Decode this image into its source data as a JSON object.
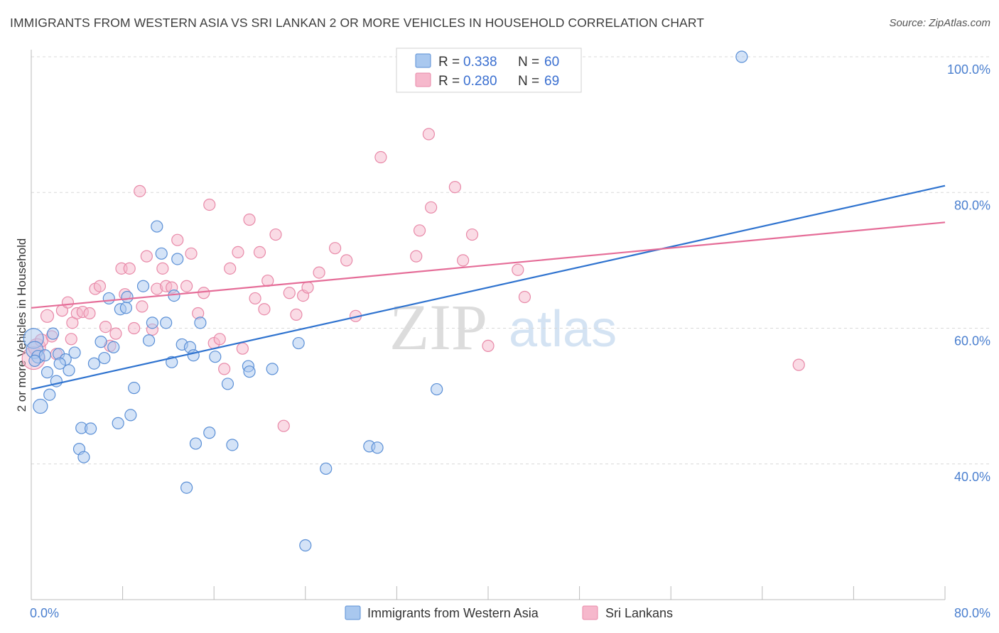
{
  "title": "IMMIGRANTS FROM WESTERN ASIA VS SRI LANKAN 2 OR MORE VEHICLES IN HOUSEHOLD CORRELATION CHART",
  "source": "Source: ZipAtlas.com",
  "watermark": {
    "part1": "ZIP",
    "part2": "atlas"
  },
  "legend": {
    "rows": [
      {
        "r_label": "R = ",
        "r_value": "0.338",
        "n_label": "N = ",
        "n_value": "60"
      },
      {
        "r_label": "R = ",
        "r_value": "0.280",
        "n_label": "N = ",
        "n_value": "69"
      }
    ]
  },
  "bottom_legend": [
    "Immigrants from Western Asia",
    "Sri Lankans"
  ],
  "colors": {
    "blue_fill": "#a9c8ef",
    "blue_stroke": "#5a8fd6",
    "blue_line": "#2f73cf",
    "pink_fill": "#f6b8cc",
    "pink_stroke": "#e889a8",
    "pink_line": "#e56d98",
    "grid": "#d8d8d8",
    "tick_text": "#4a7fcf"
  },
  "chart_data": {
    "type": "scatter",
    "xlabel": "",
    "ylabel": "2 or more Vehicles in Household",
    "xlim": [
      0,
      80
    ],
    "ylim": [
      20,
      100
    ],
    "x_tick_labels": [
      "0.0%",
      "80.0%"
    ],
    "y_ticks": [
      40,
      60,
      80,
      100
    ],
    "y_tick_labels": [
      "40.0%",
      "60.0%",
      "80.0%",
      "100.0%"
    ],
    "grid": true,
    "legend_position": "top-center",
    "series": [
      {
        "name": "Immigrants from Western Asia",
        "r": 0.338,
        "n": 60,
        "trend": {
          "x0": 0,
          "y0": 51.0,
          "x1": 80,
          "y1": 81.0
        },
        "points": [
          [
            0.2,
            58.5,
            14
          ],
          [
            0.3,
            56.8,
            12
          ],
          [
            0.6,
            55.8,
            9
          ],
          [
            0.8,
            48.5,
            10
          ],
          [
            1.2,
            56.0,
            8
          ],
          [
            1.4,
            53.5,
            8
          ],
          [
            1.6,
            50.2,
            8
          ],
          [
            1.9,
            59.2,
            8
          ],
          [
            2.2,
            52.2,
            8
          ],
          [
            2.4,
            56.2,
            8
          ],
          [
            3.0,
            55.4,
            8
          ],
          [
            3.3,
            53.8,
            8
          ],
          [
            3.8,
            56.4,
            8
          ],
          [
            4.2,
            42.2,
            8
          ],
          [
            4.4,
            45.3,
            8
          ],
          [
            4.6,
            41.0,
            8
          ],
          [
            5.2,
            45.2,
            8
          ],
          [
            5.5,
            54.8,
            8
          ],
          [
            6.1,
            58.0,
            8
          ],
          [
            6.4,
            55.6,
            8
          ],
          [
            6.8,
            64.4,
            8
          ],
          [
            7.2,
            57.2,
            8
          ],
          [
            7.6,
            46.0,
            8
          ],
          [
            7.8,
            62.8,
            8
          ],
          [
            8.3,
            63.0,
            8
          ],
          [
            8.4,
            64.6,
            8
          ],
          [
            8.7,
            47.2,
            8
          ],
          [
            9.0,
            51.2,
            8
          ],
          [
            9.8,
            66.2,
            8
          ],
          [
            10.3,
            58.2,
            8
          ],
          [
            10.6,
            60.8,
            8
          ],
          [
            11.0,
            75.0,
            8
          ],
          [
            11.4,
            71.0,
            8
          ],
          [
            11.8,
            60.8,
            8
          ],
          [
            12.3,
            55.0,
            8
          ],
          [
            12.5,
            64.8,
            8
          ],
          [
            12.8,
            70.2,
            8
          ],
          [
            13.2,
            57.6,
            8
          ],
          [
            13.6,
            36.5,
            8
          ],
          [
            13.9,
            57.2,
            8
          ],
          [
            14.2,
            56.0,
            8
          ],
          [
            14.4,
            43.0,
            8
          ],
          [
            14.8,
            60.8,
            8
          ],
          [
            15.6,
            44.6,
            8
          ],
          [
            16.1,
            55.8,
            8
          ],
          [
            17.2,
            51.8,
            8
          ],
          [
            17.6,
            42.8,
            8
          ],
          [
            19.0,
            54.4,
            8
          ],
          [
            19.1,
            53.6,
            8
          ],
          [
            21.1,
            54.0,
            8
          ],
          [
            23.4,
            57.8,
            8
          ],
          [
            24.0,
            28.0,
            8
          ],
          [
            25.8,
            39.3,
            8
          ],
          [
            29.6,
            42.6,
            8
          ],
          [
            30.3,
            42.4,
            8
          ],
          [
            35.5,
            51.0,
            8
          ],
          [
            44.0,
            100.0,
            8
          ],
          [
            62.2,
            100.0,
            8
          ],
          [
            0.3,
            55.2,
            8
          ],
          [
            2.5,
            54.8,
            8
          ]
        ]
      },
      {
        "name": "Sri Lankans",
        "r": 0.28,
        "n": 69,
        "trend": {
          "x0": 0,
          "y0": 63.0,
          "x1": 80,
          "y1": 75.6
        },
        "points": [
          [
            0.2,
            55.6,
            16
          ],
          [
            0.5,
            57.2,
            12
          ],
          [
            0.9,
            58.2,
            9
          ],
          [
            1.4,
            61.8,
            9
          ],
          [
            1.8,
            58.8,
            8
          ],
          [
            2.2,
            56.2,
            8
          ],
          [
            2.7,
            62.6,
            8
          ],
          [
            3.2,
            63.8,
            8
          ],
          [
            3.6,
            60.8,
            8
          ],
          [
            4.0,
            62.2,
            8
          ],
          [
            4.5,
            62.4,
            8
          ],
          [
            5.1,
            62.2,
            8
          ],
          [
            5.6,
            65.8,
            8
          ],
          [
            6.0,
            66.2,
            8
          ],
          [
            6.5,
            60.2,
            8
          ],
          [
            6.9,
            57.4,
            8
          ],
          [
            7.4,
            59.2,
            8
          ],
          [
            7.9,
            68.8,
            8
          ],
          [
            8.2,
            65.0,
            8
          ],
          [
            8.6,
            68.8,
            8
          ],
          [
            9.0,
            60.0,
            8
          ],
          [
            9.5,
            80.2,
            8
          ],
          [
            9.7,
            63.2,
            8
          ],
          [
            10.1,
            70.6,
            8
          ],
          [
            10.6,
            59.8,
            8
          ],
          [
            11.0,
            65.8,
            8
          ],
          [
            11.5,
            68.8,
            8
          ],
          [
            11.8,
            66.2,
            8
          ],
          [
            12.3,
            66.0,
            8
          ],
          [
            12.8,
            73.0,
            8
          ],
          [
            13.6,
            66.2,
            8
          ],
          [
            14.0,
            71.0,
            8
          ],
          [
            14.6,
            62.2,
            8
          ],
          [
            15.1,
            65.2,
            8
          ],
          [
            15.6,
            78.2,
            8
          ],
          [
            16.0,
            57.8,
            8
          ],
          [
            16.5,
            58.4,
            8
          ],
          [
            16.9,
            54.0,
            8
          ],
          [
            17.4,
            68.8,
            8
          ],
          [
            18.1,
            71.2,
            8
          ],
          [
            18.5,
            57.0,
            8
          ],
          [
            19.1,
            76.0,
            8
          ],
          [
            19.6,
            64.4,
            8
          ],
          [
            20.0,
            71.2,
            8
          ],
          [
            20.4,
            62.8,
            8
          ],
          [
            20.7,
            67.0,
            8
          ],
          [
            21.4,
            73.8,
            8
          ],
          [
            22.1,
            45.6,
            8
          ],
          [
            22.6,
            65.2,
            8
          ],
          [
            23.2,
            62.0,
            8
          ],
          [
            23.8,
            64.8,
            8
          ],
          [
            24.2,
            66.0,
            8
          ],
          [
            25.2,
            68.2,
            8
          ],
          [
            26.6,
            71.8,
            8
          ],
          [
            27.6,
            70.0,
            8
          ],
          [
            28.4,
            61.8,
            8
          ],
          [
            30.6,
            85.2,
            8
          ],
          [
            33.7,
            70.6,
            8
          ],
          [
            34.0,
            74.4,
            8
          ],
          [
            34.8,
            88.6,
            8
          ],
          [
            35.0,
            77.8,
            8
          ],
          [
            37.1,
            80.8,
            8
          ],
          [
            37.8,
            70.0,
            8
          ],
          [
            38.6,
            73.8,
            8
          ],
          [
            40.0,
            57.4,
            8
          ],
          [
            42.6,
            68.6,
            8
          ],
          [
            43.2,
            64.6,
            8
          ],
          [
            67.2,
            54.6,
            8
          ],
          [
            3.5,
            58.4,
            8
          ]
        ]
      }
    ]
  }
}
